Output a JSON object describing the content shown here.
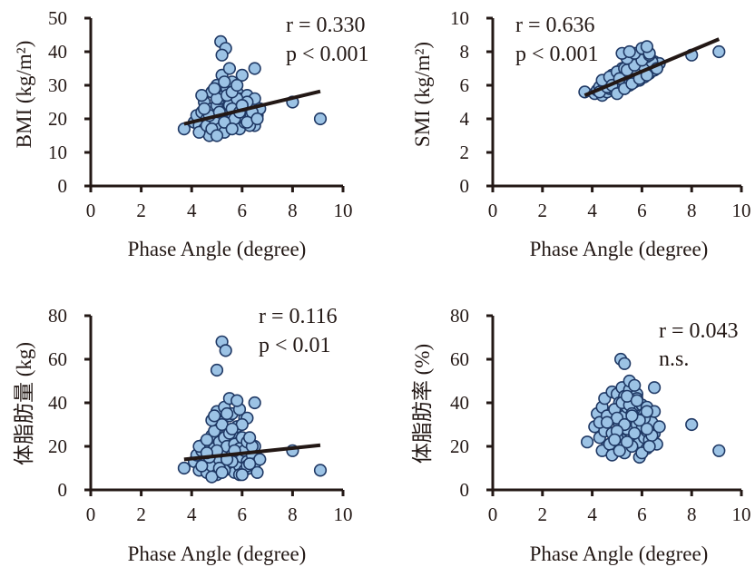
{
  "chart_data": [
    {
      "type": "scatter",
      "xlabel": "Phase Angle (degree)",
      "ylabel": "BMI (kg/m²)",
      "xlim": [
        0,
        10
      ],
      "ylim": [
        0,
        50
      ],
      "xticks": [
        "0",
        "2",
        "4",
        "6",
        "8",
        "10"
      ],
      "yticks": [
        "0",
        "10",
        "20",
        "30",
        "40",
        "50"
      ],
      "annotations": [
        "r = 0.330",
        "p < 0.001"
      ],
      "trendline": {
        "x": [
          3.7,
          9.1
        ],
        "y": [
          18.5,
          28.2
        ]
      },
      "series": [
        {
          "x": [
            3.7,
            4.1,
            4.2,
            4.3,
            4.4,
            4.5,
            4.5,
            4.6,
            4.7,
            4.8,
            4.8,
            4.9,
            5.0,
            5.0,
            5.1,
            5.1,
            5.2,
            5.2,
            5.3,
            5.3,
            5.4,
            5.4,
            5.5,
            5.5,
            5.6,
            5.6,
            5.7,
            5.7,
            5.8,
            5.8,
            5.9,
            5.9,
            6.0,
            6.0,
            6.1,
            6.1,
            6.2,
            6.2,
            6.3,
            6.4,
            6.5,
            6.5,
            6.6,
            6.7,
            4.3,
            4.6,
            4.9,
            5.2,
            5.5,
            5.8,
            6.1,
            6.4,
            4.4,
            4.7,
            5.0,
            5.3,
            5.6,
            5.9,
            6.2,
            4.8,
            5.1,
            5.4,
            5.7,
            6.0,
            6.3,
            5.0,
            5.3,
            5.6,
            5.9,
            6.2,
            5.15,
            5.35,
            5.5,
            5.2,
            6.5,
            8.0,
            9.1,
            4.9,
            5.6,
            6.0,
            5.3,
            5.8,
            4.5,
            6.6
          ],
          "y": [
            17,
            19,
            21,
            18,
            22,
            17,
            25,
            20,
            15,
            23,
            28,
            19,
            24,
            30,
            18,
            26,
            21,
            33,
            16,
            27,
            22,
            29,
            19,
            24,
            20,
            31,
            18,
            25,
            22,
            28,
            17,
            26,
            21,
            33,
            19,
            23,
            27,
            20,
            24,
            22,
            18,
            26,
            21,
            23,
            16,
            18,
            20,
            22,
            24,
            26,
            20,
            22,
            27,
            21,
            26,
            19,
            23,
            21,
            25,
            17,
            22,
            27,
            20,
            24,
            18,
            15,
            19,
            17,
            22,
            19,
            43,
            41,
            35,
            39,
            35,
            25,
            20,
            29,
            28,
            24,
            31,
            30,
            23,
            20
          ]
        }
      ]
    },
    {
      "type": "scatter",
      "xlabel": "Phase Angle (degree)",
      "ylabel": "SMI (kg/m²)",
      "xlim": [
        0,
        10
      ],
      "ylim": [
        0,
        10
      ],
      "xticks": [
        "0",
        "2",
        "4",
        "6",
        "8",
        "10"
      ],
      "yticks": [
        "0",
        "2",
        "4",
        "6",
        "8",
        "10"
      ],
      "annotations": [
        "r = 0.636",
        "p < 0.001"
      ],
      "trendline": {
        "x": [
          3.7,
          9.1
        ],
        "y": [
          5.4,
          8.75
        ]
      },
      "series": [
        {
          "x": [
            3.7,
            4.1,
            4.2,
            4.3,
            4.4,
            4.5,
            4.5,
            4.6,
            4.7,
            4.8,
            4.8,
            4.9,
            5.0,
            5.0,
            5.1,
            5.1,
            5.2,
            5.2,
            5.3,
            5.3,
            5.4,
            5.4,
            5.5,
            5.5,
            5.6,
            5.6,
            5.7,
            5.7,
            5.8,
            5.8,
            5.9,
            5.9,
            6.0,
            6.0,
            6.1,
            6.1,
            6.2,
            6.2,
            6.3,
            6.4,
            6.5,
            6.5,
            6.6,
            6.7,
            4.3,
            4.6,
            4.9,
            5.2,
            5.5,
            5.8,
            6.1,
            6.4,
            4.4,
            4.7,
            5.0,
            5.3,
            5.6,
            5.9,
            6.2,
            4.8,
            5.1,
            5.4,
            5.7,
            6.0,
            6.3,
            5.0,
            5.3,
            5.6,
            5.9,
            6.2,
            5.4,
            5.7,
            6.0,
            6.3,
            8.0,
            9.1,
            5.2,
            5.5,
            6.2,
            6.6
          ],
          "y": [
            5.6,
            5.5,
            5.7,
            5.9,
            5.4,
            6.0,
            6.3,
            5.6,
            5.8,
            6.2,
            6.6,
            5.7,
            6.1,
            6.8,
            5.9,
            6.5,
            6.2,
            7.0,
            5.8,
            6.7,
            6.3,
            7.2,
            6.0,
            6.9,
            6.4,
            7.5,
            6.2,
            7.1,
            6.6,
            7.7,
            6.3,
            7.0,
            6.8,
            7.9,
            6.5,
            7.3,
            6.9,
            7.6,
            6.7,
            7.1,
            6.9,
            7.4,
            7.0,
            7.3,
            5.6,
            5.9,
            6.1,
            6.4,
            6.6,
            6.9,
            7.1,
            7.4,
            6.3,
            6.5,
            6.8,
            7.0,
            7.3,
            7.5,
            7.7,
            6.0,
            6.4,
            6.9,
            7.2,
            7.5,
            7.8,
            5.5,
            5.8,
            6.1,
            6.4,
            6.6,
            7.6,
            7.9,
            8.2,
            7.9,
            7.8,
            8.0,
            7.9,
            8.0,
            8.3,
            7.0
          ]
        }
      ]
    },
    {
      "type": "scatter",
      "xlabel": "Phase Angle (degree)",
      "ylabel": "体脂肪量 (kg)",
      "xlim": [
        0,
        10
      ],
      "ylim": [
        0,
        80
      ],
      "xticks": [
        "0",
        "2",
        "4",
        "6",
        "8",
        "10"
      ],
      "yticks": [
        "0",
        "20",
        "40",
        "60",
        "80"
      ],
      "annotations": [
        "r = 0.116",
        "p < 0.01"
      ],
      "trendline": {
        "x": [
          3.7,
          9.1
        ],
        "y": [
          14,
          20.5
        ]
      },
      "series": [
        {
          "x": [
            3.7,
            4.1,
            4.2,
            4.3,
            4.4,
            4.5,
            4.5,
            4.6,
            4.7,
            4.8,
            4.8,
            4.9,
            5.0,
            5.0,
            5.1,
            5.1,
            5.2,
            5.2,
            5.3,
            5.3,
            5.4,
            5.4,
            5.5,
            5.5,
            5.6,
            5.6,
            5.7,
            5.7,
            5.8,
            5.8,
            5.9,
            5.9,
            6.0,
            6.0,
            6.1,
            6.1,
            6.2,
            6.2,
            6.3,
            6.4,
            6.5,
            6.5,
            6.6,
            6.7,
            4.3,
            4.6,
            4.9,
            5.2,
            5.5,
            5.8,
            6.1,
            6.4,
            4.4,
            4.7,
            5.0,
            5.3,
            5.6,
            5.9,
            6.2,
            4.8,
            5.1,
            5.4,
            5.7,
            6.0,
            6.3,
            5.0,
            5.3,
            5.6,
            5.9,
            6.2,
            5.2,
            5.35,
            5.0,
            5.5,
            5.8,
            6.5,
            8.0,
            9.1,
            4.8,
            5.4,
            6.0,
            4.9,
            5.6,
            6.3,
            4.6,
            5.2
          ],
          "y": [
            10,
            13,
            16,
            9,
            18,
            12,
            21,
            8,
            15,
            25,
            11,
            19,
            28,
            7,
            14,
            22,
            31,
            9,
            17,
            24,
            12,
            20,
            34,
            10,
            16,
            26,
            8,
            21,
            13,
            29,
            11,
            19,
            15,
            24,
            9,
            18,
            13,
            22,
            10,
            16,
            12,
            20,
            8,
            14,
            20,
            23,
            27,
            30,
            26,
            29,
            33,
            20,
            11,
            15,
            18,
            9,
            13,
            7,
            11,
            6,
            10,
            14,
            18,
            7,
            12,
            36,
            38,
            35,
            37,
            33,
            68,
            64,
            55,
            42,
            41,
            40,
            18,
            9,
            32,
            35,
            30,
            34,
            28,
            24,
            17,
            8
          ]
        }
      ]
    },
    {
      "type": "scatter",
      "xlabel": "Phase Angle (degree)",
      "ylabel": "体脂肪率 (%)",
      "xlim": [
        0,
        10
      ],
      "ylim": [
        0,
        80
      ],
      "xticks": [
        "0",
        "2",
        "4",
        "6",
        "8",
        "10"
      ],
      "yticks": [
        "0",
        "20",
        "40",
        "60",
        "80"
      ],
      "annotations": [
        "r = 0.043",
        "n.s."
      ],
      "series": [
        {
          "x": [
            3.8,
            4.1,
            4.2,
            4.3,
            4.4,
            4.5,
            4.5,
            4.6,
            4.7,
            4.8,
            4.8,
            4.9,
            5.0,
            5.0,
            5.1,
            5.1,
            5.2,
            5.2,
            5.3,
            5.3,
            5.4,
            5.4,
            5.5,
            5.5,
            5.6,
            5.6,
            5.7,
            5.7,
            5.8,
            5.8,
            5.9,
            5.9,
            6.0,
            6.0,
            6.1,
            6.1,
            6.2,
            6.2,
            6.3,
            6.4,
            6.5,
            6.5,
            6.6,
            6.7,
            4.3,
            4.6,
            4.9,
            5.2,
            5.5,
            5.8,
            6.1,
            6.4,
            4.4,
            4.7,
            5.0,
            5.3,
            5.6,
            5.9,
            6.2,
            4.8,
            5.1,
            5.4,
            5.7,
            6.0,
            6.3,
            5.0,
            5.3,
            5.6,
            5.9,
            6.2,
            5.15,
            5.3,
            5.5,
            5.7,
            6.5,
            8.0,
            9.1,
            4.6,
            5.0,
            5.4,
            5.8,
            6.2,
            4.9,
            5.6
          ],
          "y": [
            22,
            29,
            35,
            24,
            38,
            27,
            42,
            20,
            33,
            45,
            26,
            37,
            44,
            19,
            30,
            40,
            47,
            23,
            34,
            43,
            28,
            38,
            46,
            21,
            32,
            41,
            25,
            36,
            30,
            44,
            22,
            34,
            28,
            39,
            24,
            35,
            27,
            38,
            23,
            31,
            26,
            36,
            21,
            29,
            31,
            34,
            37,
            40,
            39,
            42,
            33,
            25,
            18,
            21,
            24,
            17,
            20,
            15,
            19,
            16,
            18,
            22,
            26,
            17,
            20,
            33,
            30,
            35,
            32,
            28,
            60,
            58,
            50,
            48,
            47,
            30,
            18,
            31,
            27,
            43,
            41,
            36,
            23,
            34
          ]
        }
      ]
    }
  ]
}
